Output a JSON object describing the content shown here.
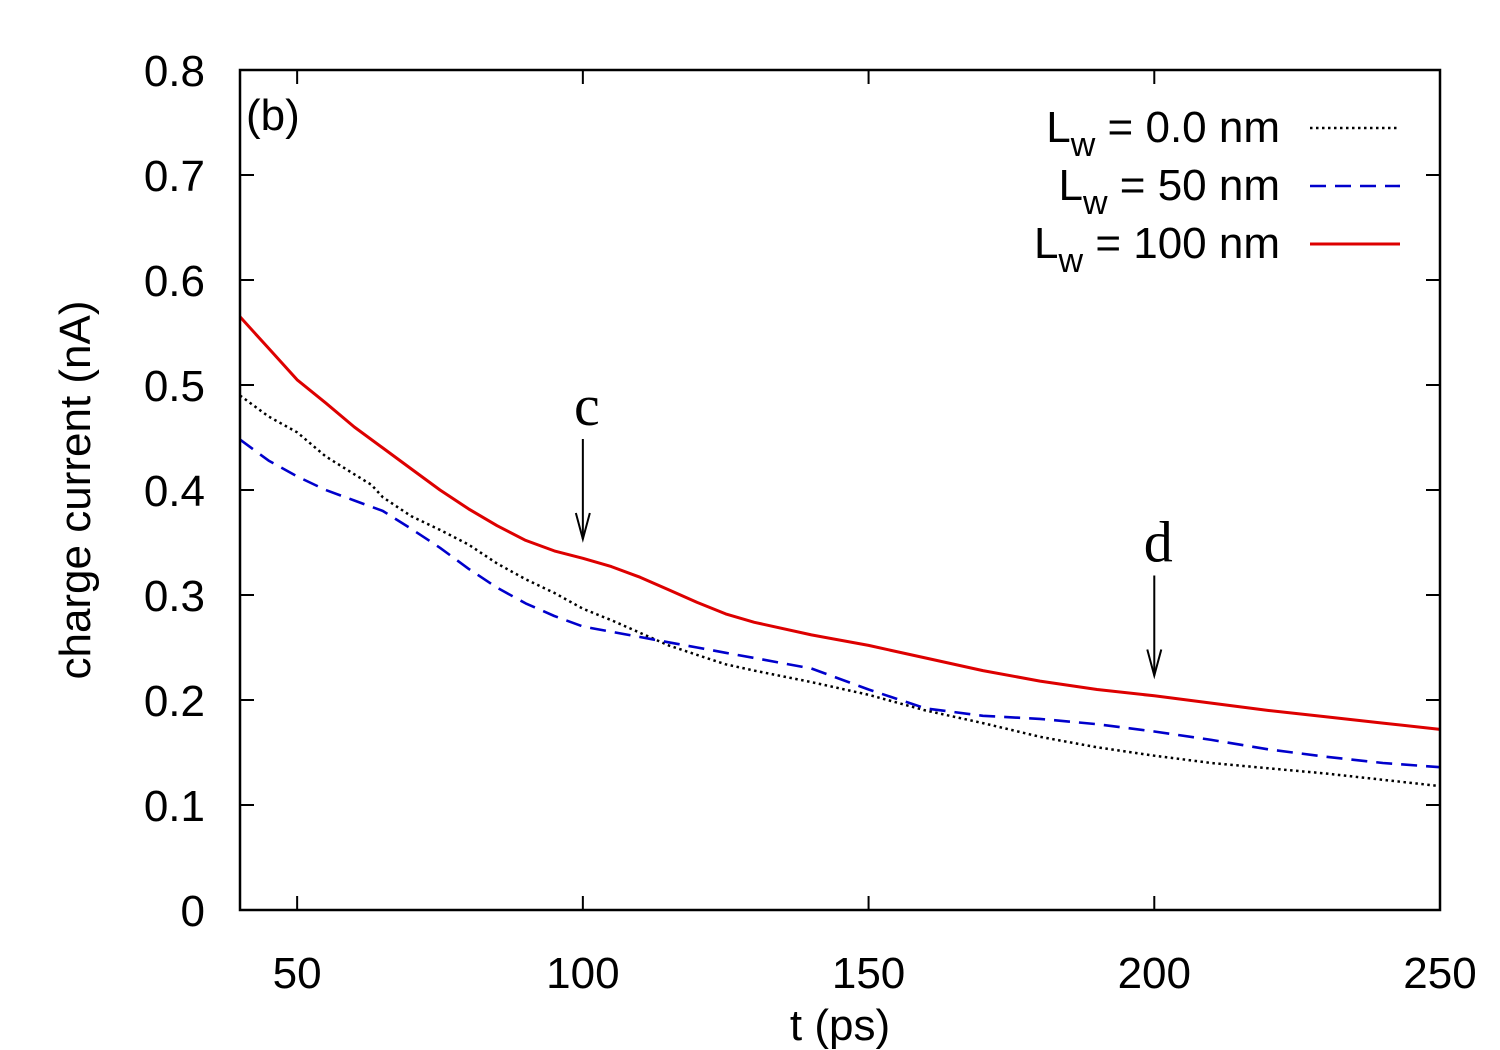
{
  "chart_data": {
    "type": "line",
    "panel_label": "(b)",
    "xlabel": "t (ps)",
    "ylabel": "charge current (nA)",
    "xlim": [
      40,
      250
    ],
    "ylim": [
      0,
      0.8
    ],
    "xticks": [
      50,
      100,
      150,
      200,
      250
    ],
    "yticks": [
      0,
      0.1,
      0.2,
      0.3,
      0.4,
      0.5,
      0.6,
      0.7,
      0.8
    ],
    "legend_position": "top-right",
    "series": [
      {
        "name": "L_w = 0.0 nm",
        "legend": {
          "prefix": "L",
          "sub": "w",
          "suffix": " = 0.0 nm"
        },
        "color": "#000000",
        "style": "dotted",
        "x": [
          40,
          45,
          50,
          55,
          60,
          63,
          65,
          70,
          75,
          80,
          85,
          90,
          95,
          100,
          105,
          110,
          115,
          120,
          125,
          130,
          140,
          150,
          160,
          170,
          180,
          190,
          200,
          210,
          220,
          230,
          240,
          250
        ],
        "y": [
          0.49,
          0.47,
          0.455,
          0.432,
          0.415,
          0.405,
          0.393,
          0.375,
          0.362,
          0.348,
          0.33,
          0.315,
          0.302,
          0.287,
          0.276,
          0.264,
          0.252,
          0.243,
          0.234,
          0.228,
          0.217,
          0.205,
          0.19,
          0.178,
          0.165,
          0.155,
          0.147,
          0.14,
          0.135,
          0.13,
          0.124,
          0.118
        ]
      },
      {
        "name": "L_w = 50 nm",
        "legend": {
          "prefix": "L",
          "sub": "w",
          "suffix": " = 50 nm"
        },
        "color": "#0000cc",
        "style": "dashed",
        "x": [
          40,
          45,
          50,
          55,
          60,
          65,
          70,
          75,
          80,
          85,
          90,
          95,
          100,
          105,
          110,
          115,
          120,
          125,
          130,
          140,
          150,
          160,
          170,
          180,
          190,
          200,
          210,
          220,
          230,
          240,
          250
        ],
        "y": [
          0.448,
          0.428,
          0.413,
          0.4,
          0.39,
          0.38,
          0.363,
          0.345,
          0.325,
          0.307,
          0.292,
          0.28,
          0.27,
          0.265,
          0.26,
          0.255,
          0.25,
          0.245,
          0.24,
          0.23,
          0.21,
          0.192,
          0.185,
          0.182,
          0.177,
          0.17,
          0.162,
          0.153,
          0.146,
          0.14,
          0.136
        ]
      },
      {
        "name": "L_w = 100 nm",
        "legend": {
          "prefix": "L",
          "sub": "w",
          "suffix": " = 100 nm"
        },
        "color": "#dd0000",
        "style": "solid",
        "x": [
          40,
          45,
          50,
          55,
          60,
          65,
          70,
          75,
          80,
          85,
          90,
          95,
          100,
          105,
          110,
          115,
          120,
          125,
          130,
          140,
          150,
          160,
          170,
          180,
          190,
          200,
          210,
          220,
          230,
          240,
          250
        ],
        "y": [
          0.565,
          0.535,
          0.505,
          0.483,
          0.46,
          0.44,
          0.42,
          0.4,
          0.382,
          0.366,
          0.352,
          0.342,
          0.335,
          0.327,
          0.317,
          0.305,
          0.293,
          0.282,
          0.274,
          0.262,
          0.252,
          0.24,
          0.228,
          0.218,
          0.21,
          0.204,
          0.197,
          0.19,
          0.184,
          0.178,
          0.172
        ]
      }
    ],
    "annotations": [
      {
        "text": "c",
        "x": 100,
        "y": 0.34
      },
      {
        "text": "d",
        "x": 200,
        "y": 0.21
      }
    ]
  }
}
